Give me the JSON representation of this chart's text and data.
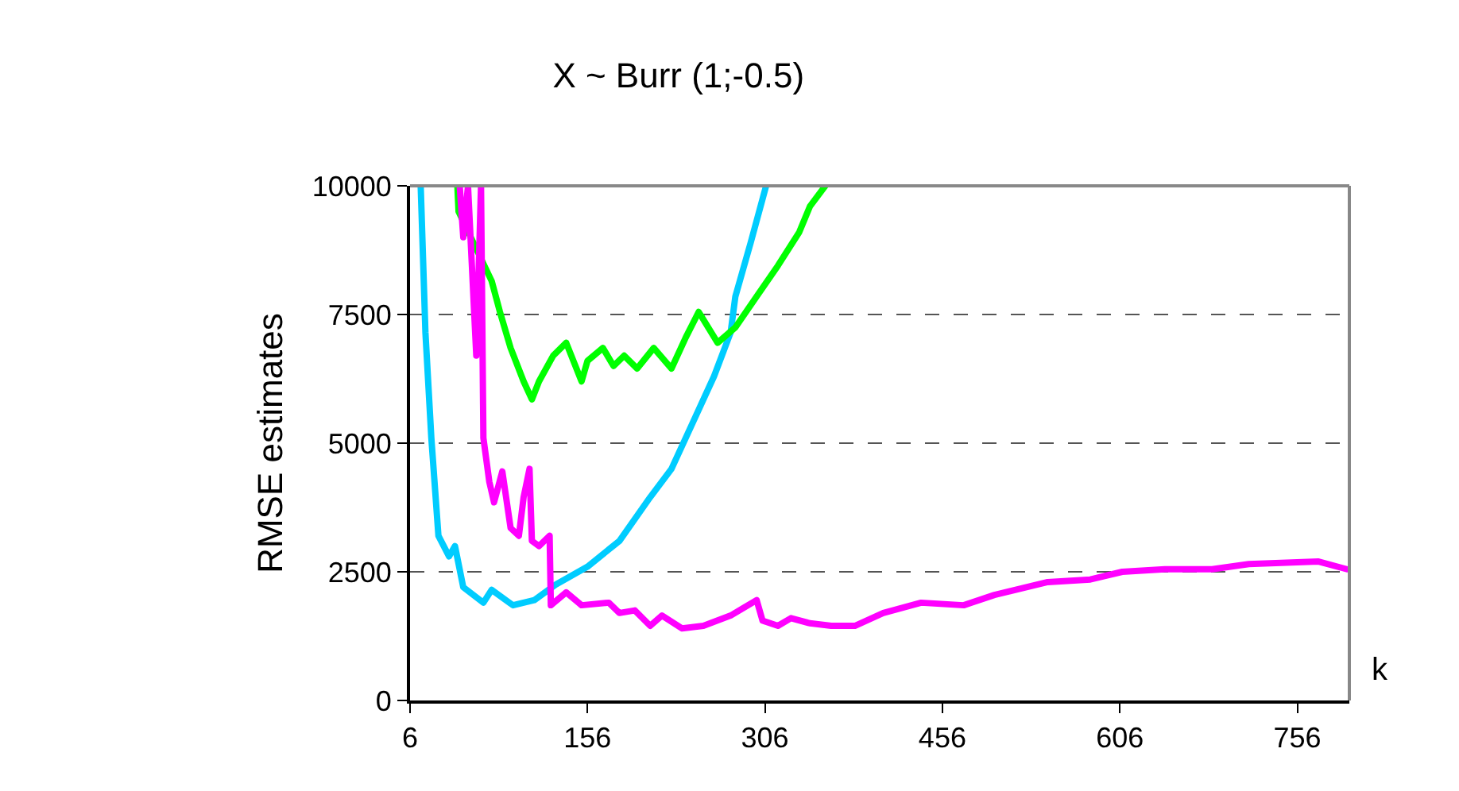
{
  "chart_data": {
    "type": "line",
    "title": "X ~ Burr (1;-0.5)",
    "xlabel": "k",
    "ylabel": "RMSE estimates",
    "xlim": [
      6,
      800
    ],
    "xticks": [
      6,
      156,
      306,
      456,
      606,
      756
    ],
    "ylim": [
      0,
      10000
    ],
    "yticks": [
      0,
      2500,
      5000,
      7500,
      10000
    ],
    "grid": "y",
    "line_style": "solid",
    "marker": "none",
    "series": [
      {
        "color": "#00ccff",
        "x": [
          15,
          19,
          24,
          30,
          39,
          44,
          51,
          68,
          75,
          93,
          111,
          129,
          156,
          183,
          209,
          227,
          245,
          263,
          277,
          281,
          294,
          307
        ],
        "values": [
          10000,
          7150,
          5100,
          3200,
          2800,
          3000,
          2200,
          1900,
          2150,
          1850,
          1950,
          2250,
          2600,
          3100,
          3950,
          4500,
          5400,
          6300,
          7150,
          7850,
          8900,
          10000
        ]
      },
      {
        "color": "#00ff00",
        "x": [
          46,
          47,
          75,
          82,
          91,
          102,
          109,
          115,
          127,
          138,
          151,
          156,
          169,
          178,
          187,
          198,
          212,
          227,
          239,
          250,
          266,
          281,
          299,
          317,
          335,
          344,
          357
        ],
        "values": [
          10000,
          9500,
          8150,
          7550,
          6850,
          6200,
          5850,
          6200,
          6700,
          6950,
          6200,
          6600,
          6850,
          6500,
          6700,
          6450,
          6850,
          6450,
          7050,
          7550,
          6950,
          7250,
          7850,
          8450,
          9100,
          9600,
          10000
        ]
      },
      {
        "color": "#ff00ff",
        "x": [
          48,
          51,
          55,
          62,
          66,
          68,
          73,
          77,
          84,
          91,
          98,
          102,
          107,
          109,
          115,
          124,
          125,
          138,
          151,
          174,
          183,
          196,
          209,
          219,
          236,
          254,
          277,
          299,
          304,
          317,
          328,
          344,
          362,
          382,
          406,
          438,
          474,
          500,
          545,
          581,
          608,
          644,
          684,
          715,
          774,
          798
        ],
        "values": [
          10000,
          9000,
          10000,
          6700,
          10000,
          5100,
          4250,
          3850,
          4450,
          3350,
          3200,
          3950,
          4500,
          3100,
          3000,
          3200,
          1850,
          2100,
          1850,
          1900,
          1700,
          1750,
          1450,
          1650,
          1400,
          1450,
          1650,
          1950,
          1550,
          1450,
          1600,
          1500,
          1450,
          1450,
          1700,
          1900,
          1850,
          2050,
          2300,
          2350,
          2500,
          2550,
          2550,
          2650,
          2700,
          2550
        ]
      }
    ]
  }
}
